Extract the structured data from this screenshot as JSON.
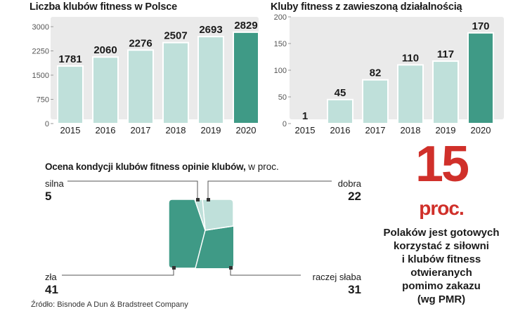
{
  "chart_data": [
    {
      "type": "bar",
      "title": "Liczba klubów fitness w Polsce",
      "categories": [
        "2015",
        "2016",
        "2017",
        "2018",
        "2019",
        "2020"
      ],
      "values": [
        1781,
        2060,
        2276,
        2507,
        2693,
        2829
      ],
      "ylim": [
        0,
        3000
      ],
      "yticks": [
        "3000",
        "2250",
        "1500",
        "750",
        "0"
      ],
      "highlight_color": "#3f9a86",
      "bar_color": "#bfe0da"
    },
    {
      "type": "bar",
      "title": "Kluby fitness z zawieszoną działalnością",
      "categories": [
        "2015",
        "2016",
        "2017",
        "2018",
        "2019",
        "2020"
      ],
      "values": [
        1,
        45,
        82,
        110,
        117,
        170
      ],
      "ylim": [
        0,
        200
      ],
      "yticks": [
        "200",
        "150",
        "100",
        "50",
        "0"
      ],
      "highlight_color": "#3f9a86",
      "bar_color": "#bfe0da"
    },
    {
      "type": "pie",
      "title_bold": "Ocena kondycji klubów fitness opinie klubów,",
      "title_rest": " w proc.",
      "slices": [
        {
          "label": "silna",
          "value": 5,
          "display": "5",
          "color": "#bfe0da"
        },
        {
          "label": "dobra",
          "value": 22,
          "display": "22",
          "color": "#bfe0da"
        },
        {
          "label": "raczej słaba",
          "value": 31,
          "display": "31",
          "color": "#3f9a86"
        },
        {
          "label": "zła",
          "value": 41,
          "display": "41",
          "color": "#3f9a86"
        }
      ]
    }
  ],
  "highlight": {
    "number": "15",
    "unit": "proc.",
    "lines": [
      "Polaków jest gotowych",
      "korzystać z siłowni",
      "i klubów fitness",
      "otwieranych",
      "pomimo zakazu",
      "(wg PMR)"
    ]
  },
  "source": "Źródło: Bisnode A Dun & Bradstreet Company",
  "colors": {
    "panel": "#eaeaea",
    "accent": "#d0302a"
  }
}
